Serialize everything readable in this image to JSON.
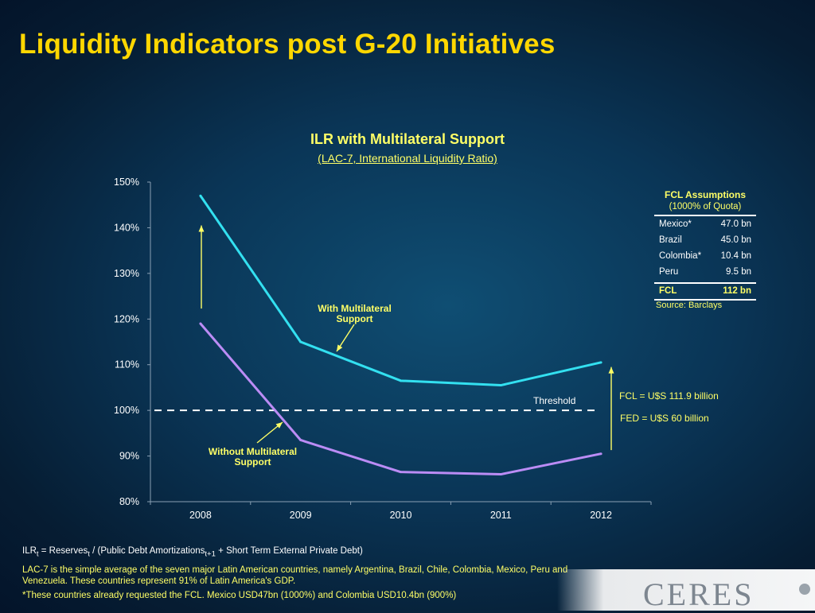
{
  "slide": {
    "title": "Liquidity Indicators post G-20 Initiatives"
  },
  "chart_data": {
    "type": "line",
    "title": "ILR with Multilateral Support",
    "subtitle": "(LAC-7, International Liquidity Ratio)",
    "categories": [
      "2008",
      "2009",
      "2010",
      "2011",
      "2012"
    ],
    "ylim": [
      80,
      150
    ],
    "yticks": [
      "80%",
      "90%",
      "100%",
      "110%",
      "120%",
      "130%",
      "140%",
      "150%"
    ],
    "series": [
      {
        "name": "With Multilateral Support",
        "values": [
          147,
          115,
          106.5,
          105.5,
          110.5
        ],
        "color": "#33e0f0"
      },
      {
        "name": "Without Multilateral Support",
        "values": [
          119,
          93.5,
          86.5,
          86,
          90.5
        ],
        "color": "#bb8cf5"
      }
    ],
    "threshold": {
      "label": "Threshold",
      "value": 100
    },
    "annotations": {
      "with_support": "With Multilateral Support",
      "without_support": "Without Multilateral Support",
      "fcl": "FCL = U$S 111.9 billion",
      "fed": "FED = U$S 60 billion"
    },
    "grid": false,
    "legend": "none"
  },
  "fcl_table": {
    "title": "FCL Assumptions",
    "subtitle": "(1000% of Quota)",
    "rows": [
      {
        "country": "Mexico*",
        "value": "47.0 bn"
      },
      {
        "country": "Brazil",
        "value": "45.0 bn"
      },
      {
        "country": "Colombia*",
        "value": "10.4 bn"
      },
      {
        "country": "Peru",
        "value": "9.5 bn"
      }
    ],
    "total": {
      "label": "FCL",
      "value": "112 bn"
    },
    "source": "Source: Barclays"
  },
  "footnotes": {
    "ilr": {
      "a": "ILR",
      "b": "t",
      "c": " = Reserves",
      "d": "t",
      "e": " / (Public Debt Amortizations",
      "f": "t+1",
      "g": " + Short Term External Private Debt)"
    },
    "lac7": "LAC-7 is the simple average of the seven major Latin American countries, namely Argentina, Brazil, Chile, Colombia, Mexico, Peru and Venezuela. These countries represent 91% of Latin America's GDP.",
    "fcl_note": "*These countries already requested the FCL. Mexico USD47bn (1000%) and Colombia USD10.4bn (900%)"
  },
  "logo": {
    "text": "CERES"
  },
  "colors": {
    "title": "#ffd700",
    "accent_yellow": "#ffff66",
    "with_support": "#33e0f0",
    "without_support": "#bb8cf5",
    "arrow": "#ffff66"
  }
}
